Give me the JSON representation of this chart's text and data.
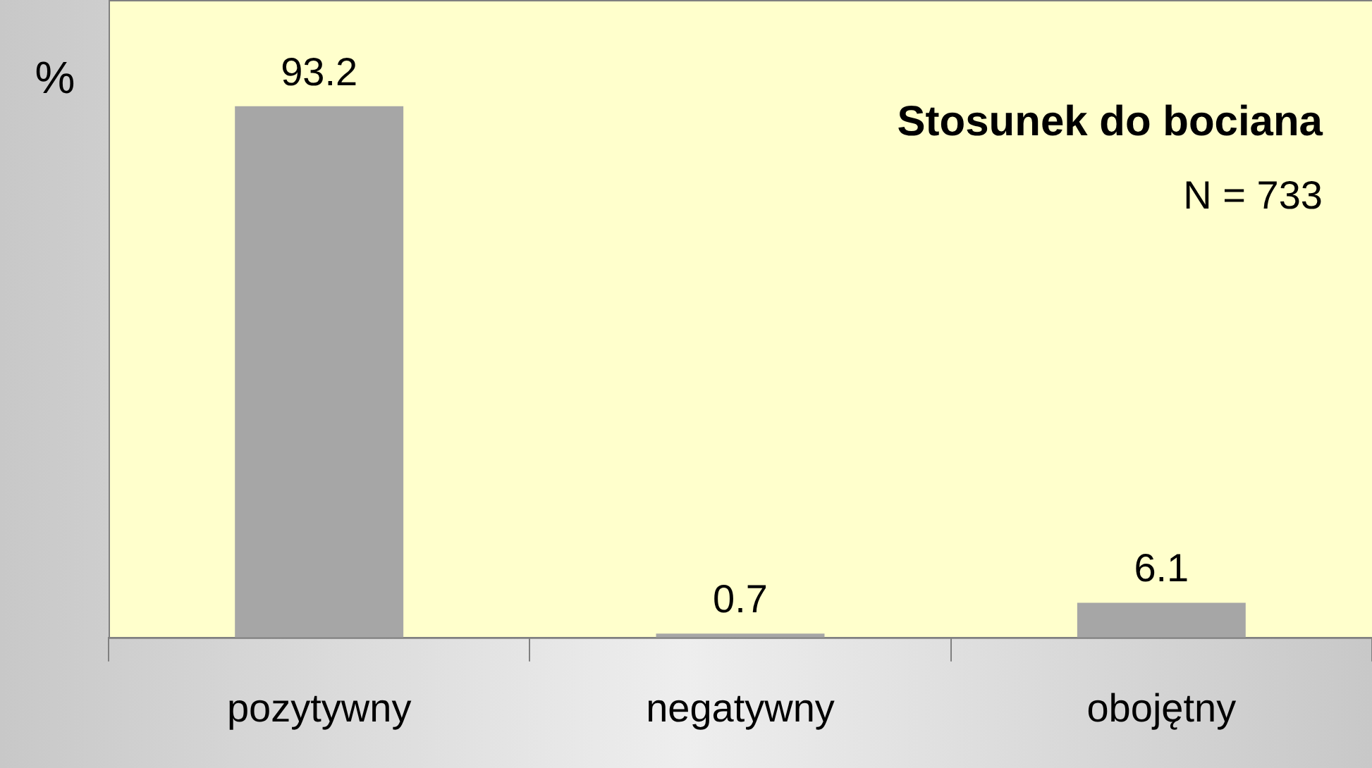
{
  "chart_data": {
    "type": "bar",
    "title": "Stosunek do bociana",
    "subtitle": "N = 733",
    "ylabel": "%",
    "categories": [
      "pozytywny",
      "negatywny",
      "obojętny"
    ],
    "values": [
      93.2,
      0.7,
      6.1
    ],
    "color": "#a6a6a6",
    "data_labels": true,
    "grid": false,
    "legend": false
  }
}
